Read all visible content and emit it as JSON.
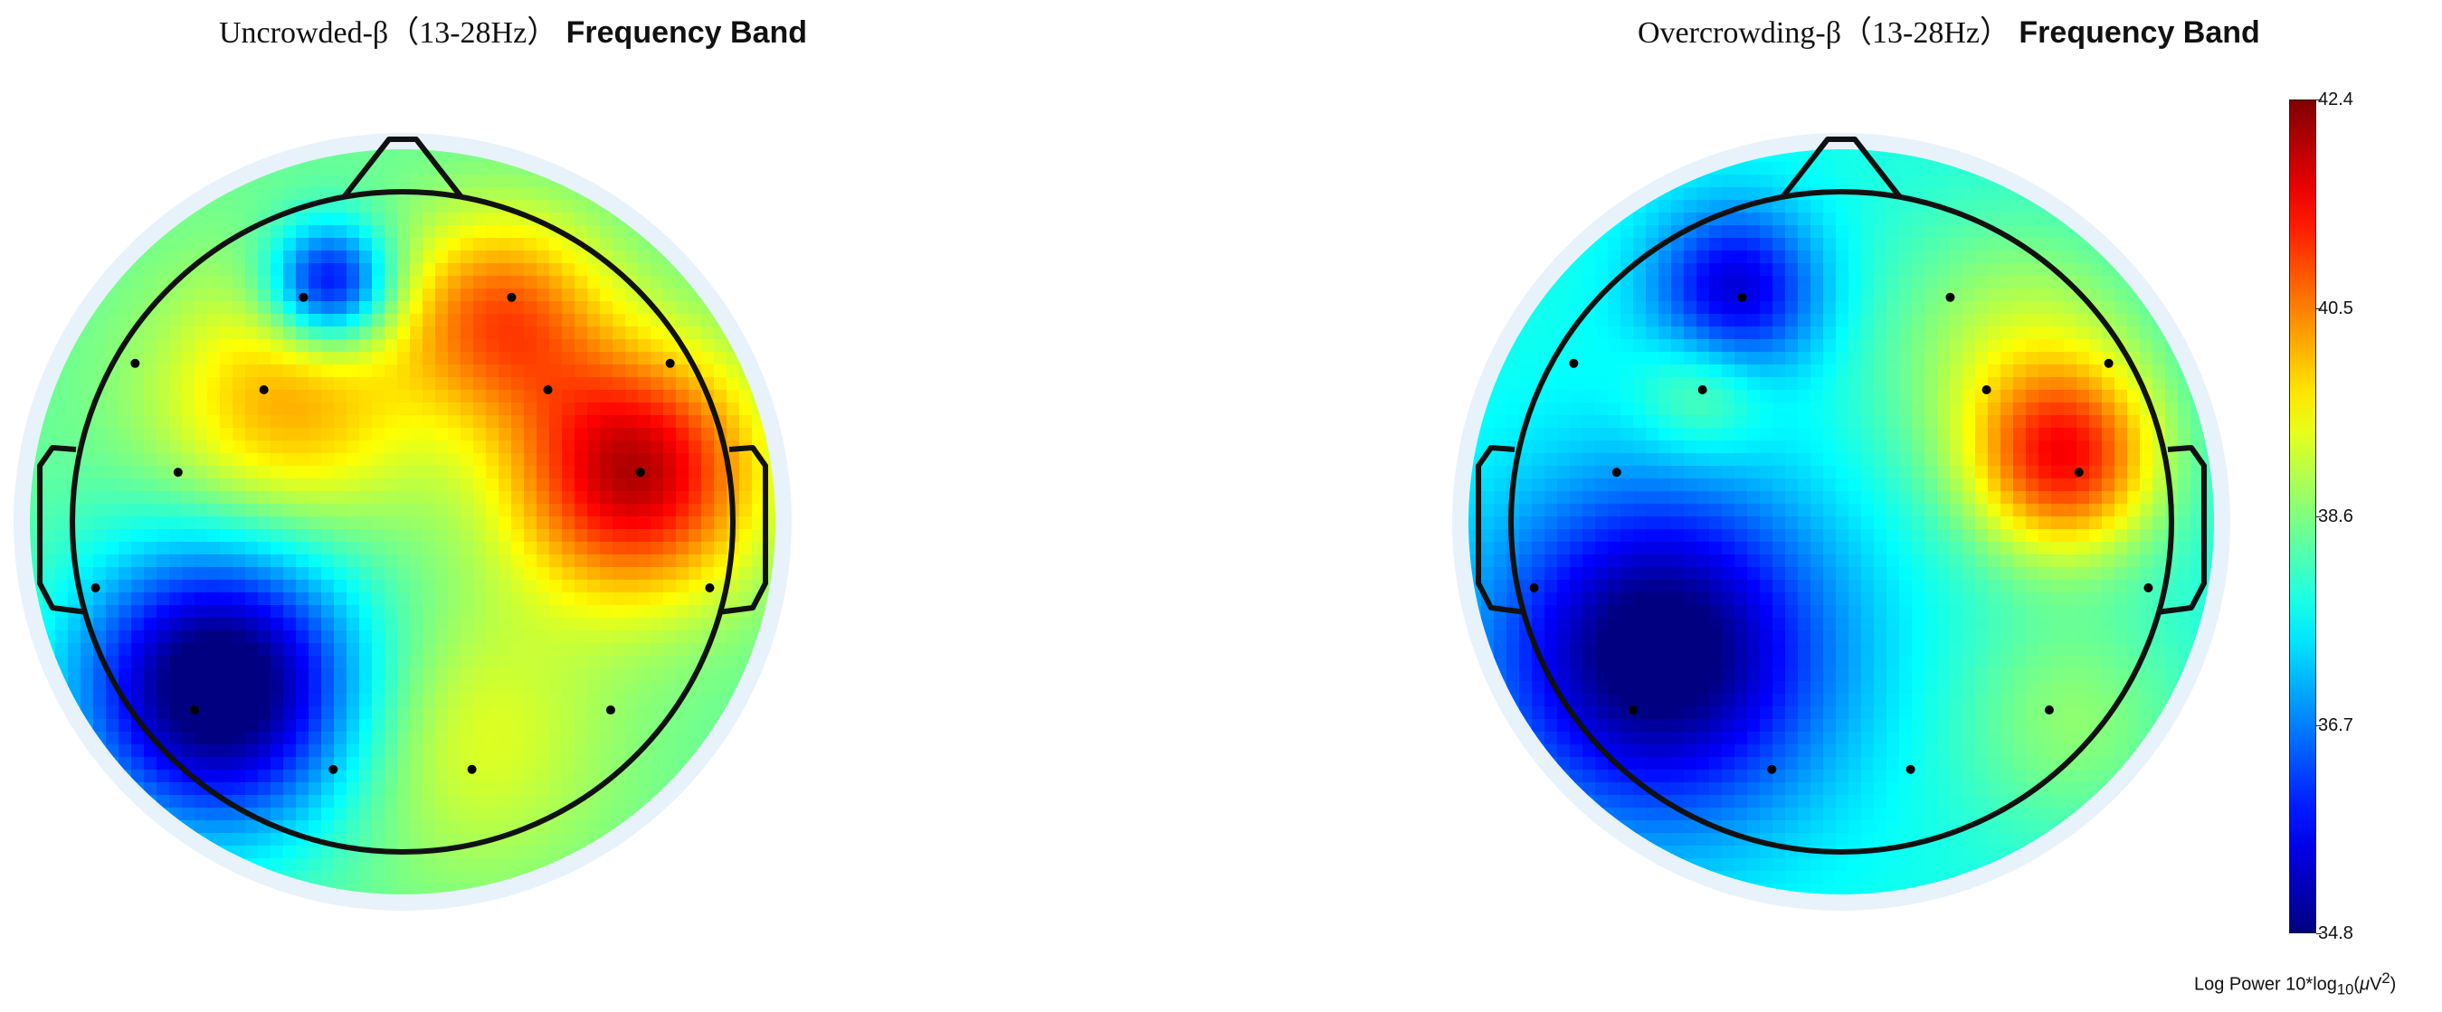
{
  "chart_data": [
    {
      "type": "heatmap",
      "title": "Uncrowded-β（13-28Hz） Frequency Band",
      "title_parts": {
        "serif": "Uncrowded-β（13-28Hz）",
        "sans": " Frequency Band"
      },
      "colormap": "jet",
      "range": [
        34.8,
        42.4
      ],
      "centers": [
        {
          "u": 0.3,
          "v": -0.62,
          "sigma": 0.22,
          "amp": 2.3
        },
        {
          "u": 0.7,
          "v": -0.15,
          "sigma": 0.26,
          "amp": 3.6
        },
        {
          "u": -0.35,
          "v": -0.35,
          "sigma": 0.28,
          "amp": 1.8
        },
        {
          "u": -0.22,
          "v": -0.72,
          "sigma": 0.13,
          "amp": -3.2
        },
        {
          "u": -0.55,
          "v": 0.5,
          "sigma": 0.3,
          "amp": -4.2
        },
        {
          "u": 0.2,
          "v": 0.65,
          "sigma": 0.3,
          "amp": 1.0
        }
      ],
      "baseline": 38.4,
      "electrodes": [
        {
          "u": -0.3,
          "v": -0.68
        },
        {
          "u": 0.33,
          "v": -0.68
        },
        {
          "u": -0.81,
          "v": -0.48
        },
        {
          "u": 0.81,
          "v": -0.48
        },
        {
          "u": -0.42,
          "v": -0.4
        },
        {
          "u": 0.44,
          "v": -0.4
        },
        {
          "u": -0.68,
          "v": -0.15
        },
        {
          "u": 0.72,
          "v": -0.15
        },
        {
          "u": -0.93,
          "v": 0.2
        },
        {
          "u": 0.93,
          "v": 0.2
        },
        {
          "u": -0.63,
          "v": 0.57
        },
        {
          "u": 0.63,
          "v": 0.57
        },
        {
          "u": -0.21,
          "v": 0.75
        },
        {
          "u": 0.21,
          "v": 0.75
        }
      ]
    },
    {
      "type": "heatmap",
      "title": "Overcrowding-β（13-28Hz） Frequency Band",
      "title_parts": {
        "serif": "Overcrowding-β（13-28Hz）",
        "sans": " Frequency Band"
      },
      "colormap": "jet",
      "range": [
        34.8,
        42.4
      ],
      "centers": [
        {
          "u": -0.32,
          "v": -0.7,
          "sigma": 0.18,
          "amp": -2.4
        },
        {
          "u": 0.68,
          "v": -0.18,
          "sigma": 0.2,
          "amp": 3.0
        },
        {
          "u": -0.55,
          "v": 0.4,
          "sigma": 0.35,
          "amp": -3.4
        },
        {
          "u": 0.55,
          "v": -0.5,
          "sigma": 0.3,
          "amp": 1.3
        },
        {
          "u": -0.42,
          "v": -0.4,
          "sigma": 0.14,
          "amp": 1.0
        },
        {
          "u": 0.7,
          "v": 0.6,
          "sigma": 0.25,
          "amp": 0.9
        }
      ],
      "baseline": 37.8,
      "electrodes": [
        {
          "u": -0.3,
          "v": -0.68
        },
        {
          "u": 0.33,
          "v": -0.68
        },
        {
          "u": -0.81,
          "v": -0.48
        },
        {
          "u": 0.81,
          "v": -0.48
        },
        {
          "u": -0.42,
          "v": -0.4
        },
        {
          "u": 0.44,
          "v": -0.4
        },
        {
          "u": -0.68,
          "v": -0.15
        },
        {
          "u": 0.72,
          "v": -0.15
        },
        {
          "u": -0.93,
          "v": 0.2
        },
        {
          "u": 0.93,
          "v": 0.2
        },
        {
          "u": -0.63,
          "v": 0.57
        },
        {
          "u": 0.63,
          "v": 0.57
        },
        {
          "u": -0.21,
          "v": 0.75
        },
        {
          "u": 0.21,
          "v": 0.75
        }
      ]
    }
  ],
  "colorbar": {
    "ticks": [
      "42.4",
      "40.5",
      "38.6",
      "36.7",
      "34.8"
    ],
    "tick_values": [
      42.4,
      40.5,
      38.6,
      36.7,
      34.8
    ],
    "label_main": "Log Power 10*log",
    "label_sub": "10",
    "label_paren_open": "(",
    "label_mu": "μ",
    "label_unit": "V",
    "label_sup": "2",
    "label_paren_close": ")"
  }
}
